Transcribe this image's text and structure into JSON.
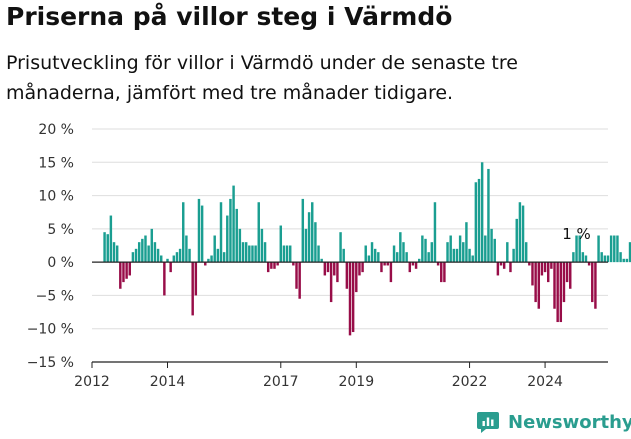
{
  "header": {
    "title": "Priserna på villor steg i Värmdö",
    "subtitle": "Prisutveckling för villor i Värmdö under de senaste tre månaderna, jämfört med tre månader tidigare."
  },
  "brand": {
    "name": "Newsworthy",
    "color": "#2a9d8f"
  },
  "chart_data": {
    "type": "bar",
    "title": "Priserna på villor steg i Värmdö",
    "subtitle": "Prisutveckling för villor i Värmdö under de senaste tre månaderna, jämfört med tre månader tidigare.",
    "xlabel": "",
    "ylabel": "",
    "unit": "%",
    "ylim": [
      -15,
      20
    ],
    "yticks": [
      -15,
      -10,
      -5,
      0,
      5,
      10,
      15,
      20
    ],
    "ytick_labels": [
      "−15 %",
      "−10 %",
      "−5 %",
      "0 %",
      "5 %",
      "10 %",
      "15 %",
      "20 %"
    ],
    "xticks": [
      {
        "label": "2012",
        "year": 2012
      },
      {
        "label": "2014",
        "year": 2014
      },
      {
        "label": "2017",
        "year": 2017
      },
      {
        "label": "2019",
        "year": 2019
      },
      {
        "label": "2022",
        "year": 2022
      },
      {
        "label": "2024",
        "year": 2024
      }
    ],
    "x_start": {
      "year": 2012,
      "month": 1
    },
    "x_end": {
      "year": 2025,
      "month": 9
    },
    "grid": "horizontal",
    "colors": {
      "positive": "#1a9e91",
      "negative": "#980d48"
    },
    "annotation": {
      "text": "1 %",
      "year": 2024,
      "month": 11
    },
    "series": [
      {
        "name": "Prisutveckling",
        "start": {
          "year": 2012,
          "month": 5
        },
        "values": [
          4.5,
          4.2,
          7.0,
          3.0,
          2.5,
          -4.0,
          -3.0,
          -2.5,
          -2.0,
          1.5,
          2.0,
          3.0,
          3.5,
          4.0,
          2.5,
          5.0,
          3.0,
          2.0,
          1.0,
          -5.0,
          0.5,
          -1.5,
          1.0,
          1.5,
          2.0,
          9.0,
          4.0,
          2.0,
          -8.0,
          -5.0,
          9.5,
          8.5,
          -0.5,
          0.5,
          1.0,
          4.0,
          2.0,
          9.0,
          1.5,
          7.0,
          9.5,
          11.5,
          8.0,
          5.0,
          3.0,
          3.0,
          2.5,
          2.5,
          2.5,
          9.0,
          5.0,
          3.0,
          -1.5,
          -1.0,
          -1.0,
          -0.5,
          5.5,
          2.5,
          2.5,
          2.5,
          -0.5,
          -4.0,
          -5.5,
          9.5,
          5.0,
          7.5,
          9.0,
          6.0,
          2.5,
          0.5,
          -2.0,
          -1.5,
          -6.0,
          -2.0,
          -3.0,
          4.5,
          2.0,
          -4.0,
          -11.0,
          -10.5,
          -4.5,
          -2.0,
          -1.5,
          2.5,
          1.0,
          3.0,
          2.0,
          1.5,
          -1.5,
          -0.5,
          -0.5,
          -3.0,
          2.5,
          1.5,
          4.5,
          3.0,
          1.5,
          -1.5,
          -0.5,
          -1.0,
          0.5,
          4.0,
          3.5,
          1.5,
          3.0,
          9.0,
          -0.5,
          -3.0,
          -3.0,
          3.0,
          4.0,
          2.0,
          2.0,
          4.0,
          3.0,
          6.0,
          2.0,
          1.0,
          12.0,
          12.5,
          15.0,
          4.0,
          14.0,
          5.0,
          3.5,
          -2.0,
          -0.5,
          -1.0,
          3.0,
          -1.5,
          2.0,
          6.5,
          9.0,
          8.5,
          3.0,
          -0.5,
          -3.5,
          -6.0,
          -7.0,
          -2.0,
          -1.5,
          -3.0,
          -1.0,
          -7.0,
          -9.0,
          -9.0,
          -6.0,
          -3.0,
          -4.0,
          1.5,
          4.0,
          4.0,
          1.5,
          1.0,
          -0.5,
          -6.0,
          -7.0,
          4.0,
          1.5,
          1.0,
          1.0,
          4.0,
          4.0,
          4.0,
          1.5,
          0.5,
          0.5,
          3.0,
          2.0,
          3.0,
          1.0,
          1.0,
          1.0
        ]
      }
    ]
  }
}
